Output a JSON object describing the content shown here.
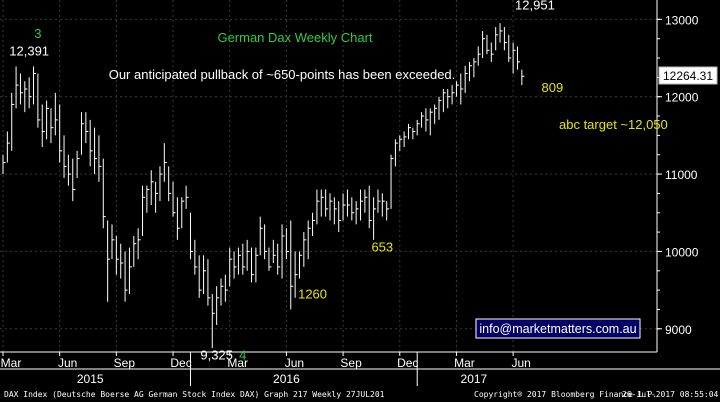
{
  "chart_data": {
    "type": "ohlc",
    "title": "German Dax Weekly Chart",
    "subtitle": "Our anticipated pullback of ~650-points has been exceeded.",
    "xlabel": "",
    "ylabel": "",
    "ylim": [
      8700,
      13250
    ],
    "y_ticks": [
      9000,
      10000,
      11000,
      12000,
      13000
    ],
    "x_tick_labels": [
      "Mar",
      "Jun",
      "Sep",
      "Dec",
      "Mar",
      "Jun",
      "Sep",
      "Dec",
      "Mar",
      "Jun"
    ],
    "x_tick_weeks": [
      0,
      13,
      26,
      39,
      52,
      65,
      78,
      91,
      104,
      117
    ],
    "year_labels": [
      {
        "label": "2015",
        "week": 20
      },
      {
        "label": "2016",
        "week": 65
      },
      {
        "label": "2017",
        "week": 108
      }
    ],
    "year_separators_week": [
      43,
      95
    ],
    "last_value": "12264.31",
    "grid": true,
    "bars": [
      {
        "h": 11250,
        "l": 11000,
        "c": 11150
      },
      {
        "h": 11550,
        "l": 11150,
        "c": 11400
      },
      {
        "h": 12050,
        "l": 11300,
        "c": 11900
      },
      {
        "h": 12391,
        "l": 11850,
        "c": 12150
      },
      {
        "h": 12300,
        "l": 11900,
        "c": 12050
      },
      {
        "h": 12200,
        "l": 11800,
        "c": 12100
      },
      {
        "h": 12250,
        "l": 11850,
        "c": 12000
      },
      {
        "h": 12391,
        "l": 11900,
        "c": 12300
      },
      {
        "h": 12300,
        "l": 11600,
        "c": 11700
      },
      {
        "h": 11900,
        "l": 11350,
        "c": 11550
      },
      {
        "h": 11950,
        "l": 11450,
        "c": 11850
      },
      {
        "h": 11850,
        "l": 11400,
        "c": 11600
      },
      {
        "h": 12050,
        "l": 11500,
        "c": 11700
      },
      {
        "h": 11900,
        "l": 11150,
        "c": 11300
      },
      {
        "h": 11500,
        "l": 10950,
        "c": 11100
      },
      {
        "h": 11250,
        "l": 10850,
        "c": 11000
      },
      {
        "h": 11200,
        "l": 10650,
        "c": 10800
      },
      {
        "h": 11300,
        "l": 10950,
        "c": 11200
      },
      {
        "h": 11800,
        "l": 11250,
        "c": 11650
      },
      {
        "h": 11800,
        "l": 11400,
        "c": 11550
      },
      {
        "h": 11700,
        "l": 11100,
        "c": 11300
      },
      {
        "h": 11600,
        "l": 11000,
        "c": 11200
      },
      {
        "h": 11500,
        "l": 10900,
        "c": 11100
      },
      {
        "h": 11200,
        "l": 10300,
        "c": 10450
      },
      {
        "h": 10400,
        "l": 9350,
        "c": 9900
      },
      {
        "h": 10350,
        "l": 9900,
        "c": 10150
      },
      {
        "h": 10200,
        "l": 9700,
        "c": 9900
      },
      {
        "h": 10100,
        "l": 9650,
        "c": 9850
      },
      {
        "h": 10000,
        "l": 9350,
        "c": 9500
      },
      {
        "h": 10050,
        "l": 9450,
        "c": 9800
      },
      {
        "h": 10200,
        "l": 9800,
        "c": 10100
      },
      {
        "h": 10300,
        "l": 9900,
        "c": 10150
      },
      {
        "h": 10850,
        "l": 10200,
        "c": 10700
      },
      {
        "h": 10850,
        "l": 10500,
        "c": 10800
      },
      {
        "h": 11050,
        "l": 10600,
        "c": 10900
      },
      {
        "h": 10900,
        "l": 10500,
        "c": 10750
      },
      {
        "h": 11100,
        "l": 10650,
        "c": 11000
      },
      {
        "h": 11400,
        "l": 10900,
        "c": 11150
      },
      {
        "h": 11100,
        "l": 10650,
        "c": 10750
      },
      {
        "h": 10900,
        "l": 10450,
        "c": 10500
      },
      {
        "h": 10700,
        "l": 10150,
        "c": 10300
      },
      {
        "h": 10700,
        "l": 10300,
        "c": 10650
      },
      {
        "h": 10850,
        "l": 10550,
        "c": 10700
      },
      {
        "h": 10500,
        "l": 9900,
        "c": 10000
      },
      {
        "h": 10150,
        "l": 9700,
        "c": 9800
      },
      {
        "h": 9950,
        "l": 9400,
        "c": 9500
      },
      {
        "h": 9950,
        "l": 9450,
        "c": 9750
      },
      {
        "h": 9900,
        "l": 9300,
        "c": 9400
      },
      {
        "h": 9450,
        "l": 8750,
        "c": 9200
      },
      {
        "h": 9550,
        "l": 9050,
        "c": 9400
      },
      {
        "h": 9650,
        "l": 9300,
        "c": 9550
      },
      {
        "h": 9700,
        "l": 9350,
        "c": 9500
      },
      {
        "h": 10050,
        "l": 9550,
        "c": 9900
      },
      {
        "h": 10000,
        "l": 9650,
        "c": 9800
      },
      {
        "h": 10050,
        "l": 9700,
        "c": 9950
      },
      {
        "h": 10100,
        "l": 9700,
        "c": 9800
      },
      {
        "h": 10150,
        "l": 9750,
        "c": 10000
      },
      {
        "h": 10050,
        "l": 9600,
        "c": 9700
      },
      {
        "h": 10050,
        "l": 9600,
        "c": 9950
      },
      {
        "h": 10450,
        "l": 9950,
        "c": 10300
      },
      {
        "h": 10350,
        "l": 9900,
        "c": 10000
      },
      {
        "h": 10050,
        "l": 9750,
        "c": 9800
      },
      {
        "h": 10150,
        "l": 9850,
        "c": 9950
      },
      {
        "h": 10100,
        "l": 9700,
        "c": 9800
      },
      {
        "h": 10350,
        "l": 9650,
        "c": 10200
      },
      {
        "h": 10300,
        "l": 9900,
        "c": 10000
      },
      {
        "h": 10400,
        "l": 9250,
        "c": 9550
      },
      {
        "h": 10000,
        "l": 9400,
        "c": 9700
      },
      {
        "h": 10000,
        "l": 9650,
        "c": 9950
      },
      {
        "h": 10250,
        "l": 9800,
        "c": 10150
      },
      {
        "h": 10400,
        "l": 9900,
        "c": 10300
      },
      {
        "h": 10500,
        "l": 10200,
        "c": 10400
      },
      {
        "h": 10800,
        "l": 10350,
        "c": 10650
      },
      {
        "h": 10800,
        "l": 10450,
        "c": 10700
      },
      {
        "h": 10800,
        "l": 10450,
        "c": 10550
      },
      {
        "h": 10750,
        "l": 10400,
        "c": 10650
      },
      {
        "h": 10700,
        "l": 10350,
        "c": 10550
      },
      {
        "h": 10650,
        "l": 10250,
        "c": 10400
      },
      {
        "h": 10750,
        "l": 10400,
        "c": 10600
      },
      {
        "h": 10800,
        "l": 10450,
        "c": 10600
      },
      {
        "h": 10700,
        "l": 10400,
        "c": 10500
      },
      {
        "h": 10650,
        "l": 10350,
        "c": 10550
      },
      {
        "h": 10800,
        "l": 10400,
        "c": 10650
      },
      {
        "h": 10800,
        "l": 10500,
        "c": 10700
      },
      {
        "h": 10850,
        "l": 10300,
        "c": 10400
      },
      {
        "h": 10700,
        "l": 10150,
        "c": 10550
      },
      {
        "h": 10800,
        "l": 10500,
        "c": 10650
      },
      {
        "h": 10750,
        "l": 10450,
        "c": 10650
      },
      {
        "h": 10650,
        "l": 10400,
        "c": 10550
      },
      {
        "h": 11250,
        "l": 10550,
        "c": 11200
      },
      {
        "h": 11450,
        "l": 11100,
        "c": 11400
      },
      {
        "h": 11500,
        "l": 11300,
        "c": 11450
      },
      {
        "h": 11550,
        "l": 11350,
        "c": 11480
      },
      {
        "h": 11650,
        "l": 11450,
        "c": 11600
      },
      {
        "h": 11600,
        "l": 11450,
        "c": 11550
      },
      {
        "h": 11700,
        "l": 11500,
        "c": 11650
      },
      {
        "h": 11800,
        "l": 11600,
        "c": 11750
      },
      {
        "h": 11850,
        "l": 11550,
        "c": 11700
      },
      {
        "h": 11850,
        "l": 11500,
        "c": 11800
      },
      {
        "h": 11900,
        "l": 11650,
        "c": 11850
      },
      {
        "h": 12000,
        "l": 11700,
        "c": 11950
      },
      {
        "h": 12100,
        "l": 11800,
        "c": 12050
      },
      {
        "h": 12100,
        "l": 11850,
        "c": 12000
      },
      {
        "h": 12150,
        "l": 11900,
        "c": 12050
      },
      {
        "h": 12200,
        "l": 12000,
        "c": 12150
      },
      {
        "h": 12300,
        "l": 11900,
        "c": 12100
      },
      {
        "h": 12400,
        "l": 12050,
        "c": 12300
      },
      {
        "h": 12450,
        "l": 12200,
        "c": 12400
      },
      {
        "h": 12500,
        "l": 12250,
        "c": 12450
      },
      {
        "h": 12650,
        "l": 12400,
        "c": 12550
      },
      {
        "h": 12850,
        "l": 12500,
        "c": 12750
      },
      {
        "h": 12800,
        "l": 12550,
        "c": 12600
      },
      {
        "h": 12700,
        "l": 12450,
        "c": 12550
      },
      {
        "h": 12900,
        "l": 12600,
        "c": 12800
      },
      {
        "h": 12951,
        "l": 12700,
        "c": 12850
      },
      {
        "h": 12900,
        "l": 12600,
        "c": 12700
      },
      {
        "h": 12800,
        "l": 12450,
        "c": 12500
      },
      {
        "h": 12700,
        "l": 12300,
        "c": 12600
      },
      {
        "h": 12650,
        "l": 12350,
        "c": 12450
      },
      {
        "h": 12350,
        "l": 12150,
        "c": 12264
      }
    ],
    "annotations": [
      {
        "text": "3",
        "color": "#2ecc40",
        "week": 8,
        "y": 12760
      },
      {
        "text": "12,391",
        "color": "#ffffff",
        "week": 6,
        "y": 12530
      },
      {
        "text": "12,951",
        "color": "#ffffff",
        "week": 122,
        "y": 13130
      },
      {
        "text": "809",
        "color": "#e6e600",
        "week": 126,
        "y": 12060
      },
      {
        "text": "abc target ~12,050",
        "color": "#e6e600",
        "week": 140,
        "y": 11580
      },
      {
        "text": "653",
        "color": "#e6e600",
        "week": 87,
        "y": 10000
      },
      {
        "text": "1260",
        "color": "#e6e600",
        "week": 71,
        "y": 9390
      },
      {
        "text": "9,325",
        "color": "#ffffff",
        "week": 49,
        "y": 8600
      },
      {
        "text": "4",
        "color": "#2ecc40",
        "week": 55,
        "y": 8600
      }
    ],
    "link_text": "info@marketmatters.com.au",
    "title_color": "#2ecc40",
    "bar_color": "#ffffff"
  },
  "footer": {
    "left": "DAX Index (Deutsche Boerse AG German Stock Index DAX) Graph 217  Weekly 27JUL201",
    "middle": "Copyright® 2017 Bloomberg Finance L.P.",
    "right": "26-Jul-2017 08:55:04"
  }
}
